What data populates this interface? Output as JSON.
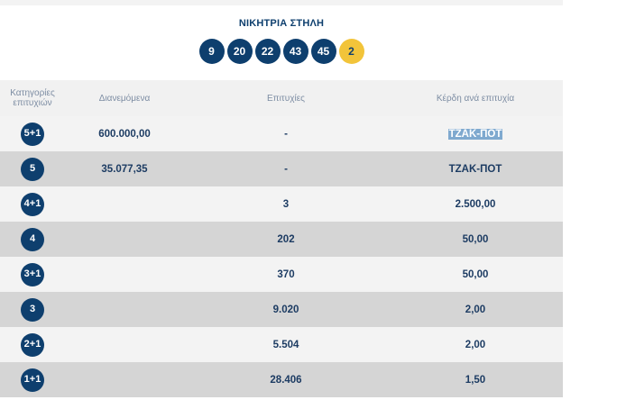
{
  "winning_line": {
    "title": "ΝΙΚΗΤΡΙΑ ΣΤΗΛΗ",
    "numbers": [
      "9",
      "20",
      "22",
      "43",
      "45"
    ],
    "joker": "2",
    "joker_color": "#f2c43a",
    "ball_color": "#0e3f6e"
  },
  "table": {
    "headers": {
      "category": "Κατηγορίες επιτυχιών",
      "distributed": "Διανεμόμενα",
      "winners": "Επιτυχίες",
      "prize_per_winner": "Κέρδη ανά επιτυχία"
    },
    "rows": [
      {
        "category": "5+1",
        "distributed": "600.000,00",
        "winners": "-",
        "prize": "ΤΖΑΚ-ΠΟΤ"
      },
      {
        "category": "5",
        "distributed": "35.077,35",
        "winners": "-",
        "prize": "ΤΖΑΚ-ΠΟΤ"
      },
      {
        "category": "4+1",
        "distributed": "",
        "winners": "3",
        "prize": "2.500,00"
      },
      {
        "category": "4",
        "distributed": "",
        "winners": "202",
        "prize": "50,00"
      },
      {
        "category": "3+1",
        "distributed": "",
        "winners": "370",
        "prize": "50,00"
      },
      {
        "category": "3",
        "distributed": "",
        "winners": "9.020",
        "prize": "2,00"
      },
      {
        "category": "2+1",
        "distributed": "",
        "winners": "5.504",
        "prize": "2,00"
      },
      {
        "category": "1+1",
        "distributed": "",
        "winners": "28.406",
        "prize": "1,50"
      }
    ]
  }
}
